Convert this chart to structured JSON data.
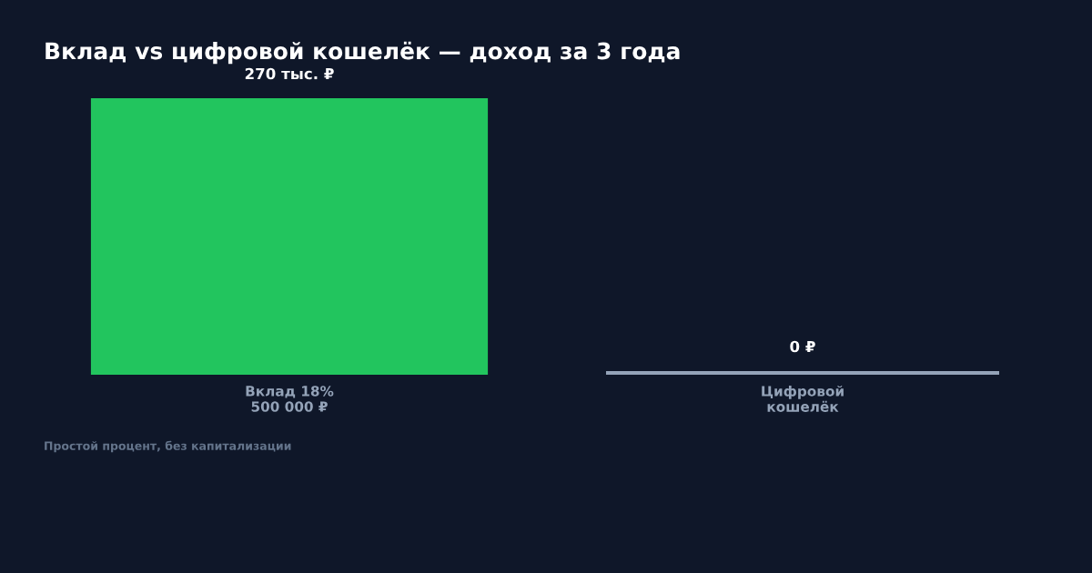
{
  "chart_data": {
    "type": "bar",
    "title": "Вклад vs цифровой кошелёк — доход за 3 года",
    "categories": [
      "Вклад 18%\n500 000 ₽",
      "Цифровой\nкошелёк"
    ],
    "values": [
      270,
      0
    ],
    "colors": [
      "#22c55e",
      "#94a3b8"
    ],
    "value_labels": [
      "270 тыс. ₽",
      "0 ₽"
    ],
    "annotations": [
      "Простой процент, без капитализации"
    ],
    "ylim": [
      0,
      270
    ],
    "grid": false,
    "legend": false
  }
}
